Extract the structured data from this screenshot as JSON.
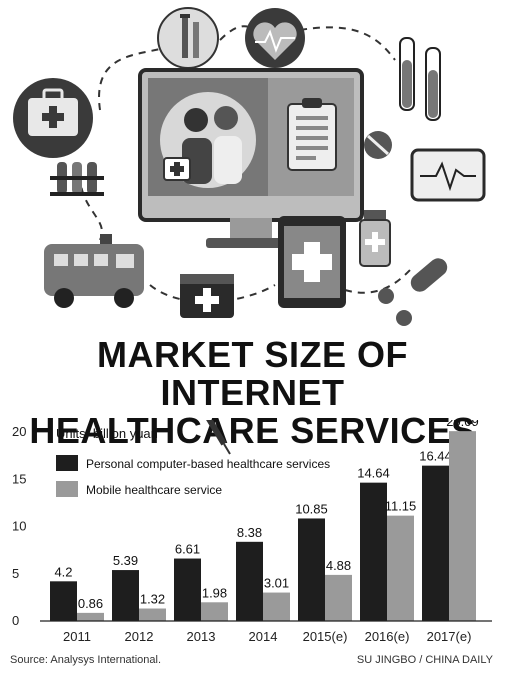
{
  "title_line1": "MARKET SIZE OF INTERNET",
  "title_line2": "HEALTHCARE SERVICES",
  "units": "Units: billion yuan",
  "chart_data": {
    "type": "bar",
    "categories": [
      "2011",
      "2012",
      "2013",
      "2014",
      "2015(e)",
      "2016(e)",
      "2017(e)"
    ],
    "series": [
      {
        "name": "Personal computer-based healthcare services",
        "values": [
          4.2,
          5.39,
          6.61,
          8.38,
          10.85,
          14.64,
          16.44
        ],
        "labels": [
          "4.2",
          "5.39",
          "6.61",
          "8.38",
          "10.85",
          "14.64",
          "16.44"
        ],
        "color": "#1e1e1e"
      },
      {
        "name": "Mobile healthcare service",
        "values": [
          0.86,
          1.32,
          1.98,
          3.01,
          4.88,
          11.15,
          20.09
        ],
        "labels": [
          "0.86",
          "1.32",
          "1.98",
          "3.01",
          "4.88",
          "11.15",
          "20.09"
        ],
        "color": "#9a9a9a"
      }
    ],
    "yticks": [
      "0",
      "5",
      "10",
      "15",
      "20"
    ],
    "ylim": [
      0,
      20
    ],
    "legend": "top-left",
    "grid": false
  },
  "source": "Source: Analysys International.",
  "credit": "SU JINGBO / CHINA DAILY",
  "icons": [
    "first-aid-kit-icon",
    "test-tubes-icon",
    "syringe-icon",
    "heart-monitor-icon",
    "monitor-icon",
    "doctor-nurse-icon",
    "clipboard-icon",
    "pill-icon",
    "ecg-device-icon",
    "tablet-cross-icon",
    "medicine-bottle-icon",
    "ambulance-icon",
    "medical-box-icon",
    "capsule-icon"
  ]
}
